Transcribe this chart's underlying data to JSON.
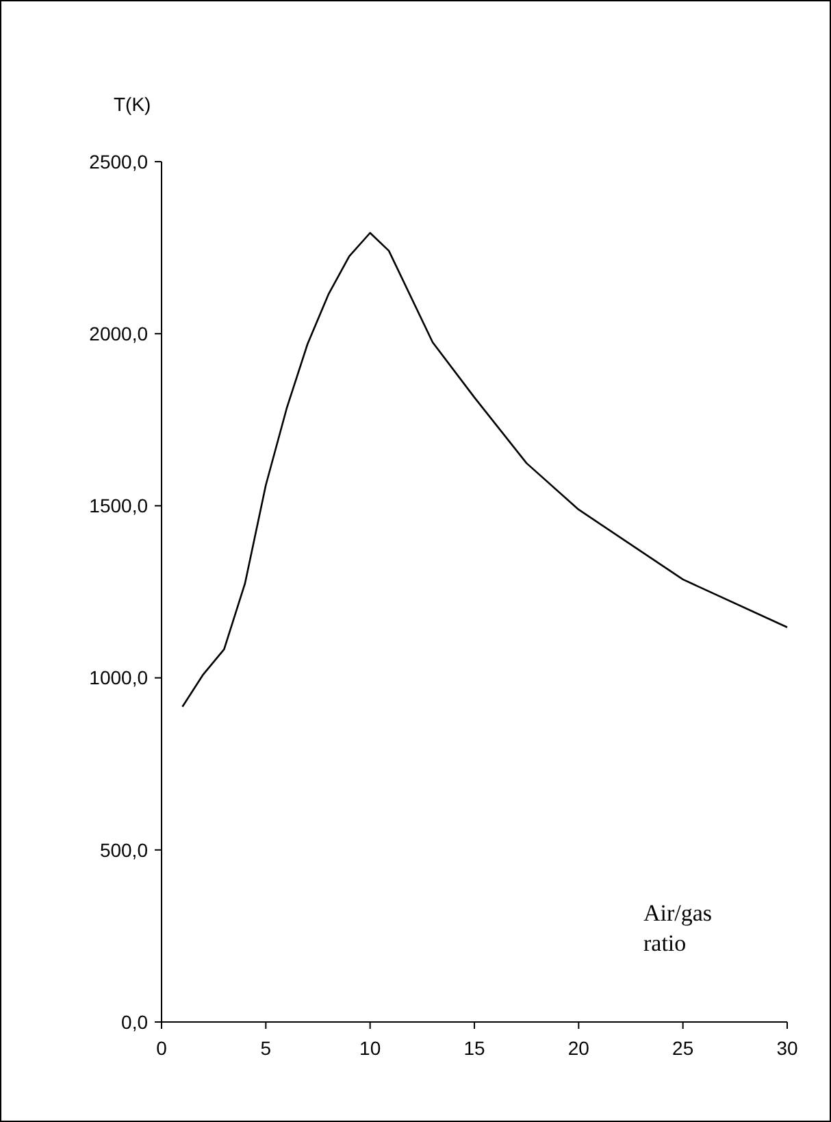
{
  "chart_data": {
    "type": "line",
    "xlabel": "Air/gas ratio",
    "ylabel": "T(K)",
    "x": [
      1,
      2,
      3,
      4,
      5,
      6,
      7,
      8,
      9,
      10,
      10.9,
      13,
      15,
      17.5,
      20,
      25,
      30
    ],
    "series": [
      {
        "color": "#000000",
        "values": [
          916,
          1010,
          1083,
          1274,
          1560,
          1783,
          1970,
          2114,
          2225,
          2293,
          2241,
          1975,
          1815,
          1624,
          1489,
          1286,
          1147
        ]
      }
    ],
    "xlim": [
      0,
      30
    ],
    "xticks": [
      0,
      5,
      10,
      15,
      20,
      25,
      30
    ],
    "ylim": [
      0,
      2500
    ],
    "yticks": [
      {
        "value": 0,
        "label": "0,0"
      },
      {
        "value": 500,
        "label": "500,0"
      },
      {
        "value": 1000,
        "label": "1000,0"
      },
      {
        "value": 1500,
        "label": "1500,0"
      },
      {
        "value": 2000,
        "label": "2000,0"
      },
      {
        "value": 2500,
        "label": "2500,0"
      }
    ],
    "grid": false,
    "marker": "none",
    "line_style": "solid"
  }
}
